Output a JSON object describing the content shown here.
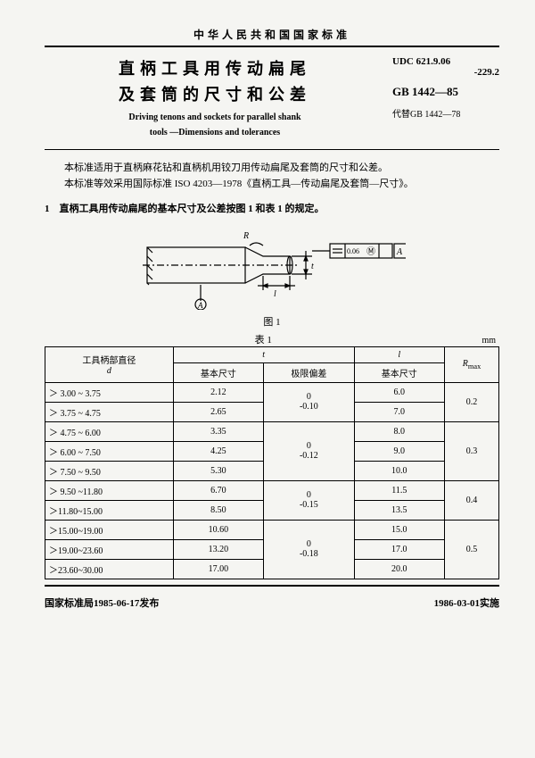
{
  "header": {
    "org_line": "中华人民共和国国家标准",
    "title_cn_l1": "直柄工具用传动扁尾",
    "title_cn_l2": "及套筒的尺寸和公差",
    "title_en_l1": "Driving tenons and sockets for parallel shank",
    "title_en_l2": "tools —Dimensions and tolerances",
    "udc_l1": "UDC 621.9.06",
    "udc_l2": "-229.2",
    "gb": "GB 1442—85",
    "replace": "代替GB 1442—78"
  },
  "body": {
    "p1": "本标准适用于直柄麻花钻和直柄机用铰刀用传动扁尾及套筒的尺寸和公差。",
    "p2": "本标准等效采用国际标准 ISO 4203—1978《直柄工具—传动扁尾及套筒—尺寸》。",
    "sec1": "1　直柄工具用传动扁尾的基本尺寸及公差按图 1 和表 1 的规定。"
  },
  "figure": {
    "caption": "图 1",
    "labels": {
      "R": "R",
      "A": "A",
      "t": "t",
      "l": "l",
      "tol": "0.06",
      "M": "Ⓜ"
    }
  },
  "table": {
    "caption": "表 1",
    "unit": "mm",
    "headers": {
      "d_top": "工具柄部直径",
      "d_sym": "d",
      "t": "t",
      "t_basic": "基本尺寸",
      "t_dev": "极限偏差",
      "l": "l",
      "l_basic": "基本尺寸",
      "rmax": "R",
      "rmax_sub": "max"
    },
    "rows": [
      {
        "d": "＞ 3.00 ~ 3.75",
        "t_basic": "2.12",
        "l_basic": "6.0"
      },
      {
        "d": "＞ 3.75 ~ 4.75",
        "t_basic": "2.65",
        "l_basic": "7.0"
      },
      {
        "d": "＞ 4.75 ~ 6.00",
        "t_basic": "3.35",
        "l_basic": "8.0"
      },
      {
        "d": "＞ 6.00 ~ 7.50",
        "t_basic": "4.25",
        "l_basic": "9.0"
      },
      {
        "d": "＞ 7.50 ~ 9.50",
        "t_basic": "5.30",
        "l_basic": "10.0"
      },
      {
        "d": "＞ 9.50 ~11.80",
        "t_basic": "6.70",
        "l_basic": "11.5"
      },
      {
        "d": "＞11.80~15.00",
        "t_basic": "8.50",
        "l_basic": "13.5"
      },
      {
        "d": "＞15.00~19.00",
        "t_basic": "10.60",
        "l_basic": "15.0"
      },
      {
        "d": "＞19.00~23.60",
        "t_basic": "13.20",
        "l_basic": "17.0"
      },
      {
        "d": "＞23.60~30.00",
        "t_basic": "17.00",
        "l_basic": "20.0"
      }
    ],
    "dev_groups": [
      {
        "span": 2,
        "val_top": "0",
        "val_bot": "-0.10"
      },
      {
        "span": 3,
        "val_top": "0",
        "val_bot": "-0.12"
      },
      {
        "span": 2,
        "val_top": "0",
        "val_bot": "-0.15"
      },
      {
        "span": 3,
        "val_top": "0",
        "val_bot": "-0.18"
      }
    ],
    "r_groups": [
      {
        "span": 2,
        "val": "0.2"
      },
      {
        "span": 3,
        "val": "0.3"
      },
      {
        "span": 2,
        "val": "0.4"
      },
      {
        "span": 3,
        "val": "0.5"
      }
    ]
  },
  "footer": {
    "left": "国家标准局1985-06-17发布",
    "right": "1986-03-01实施"
  }
}
